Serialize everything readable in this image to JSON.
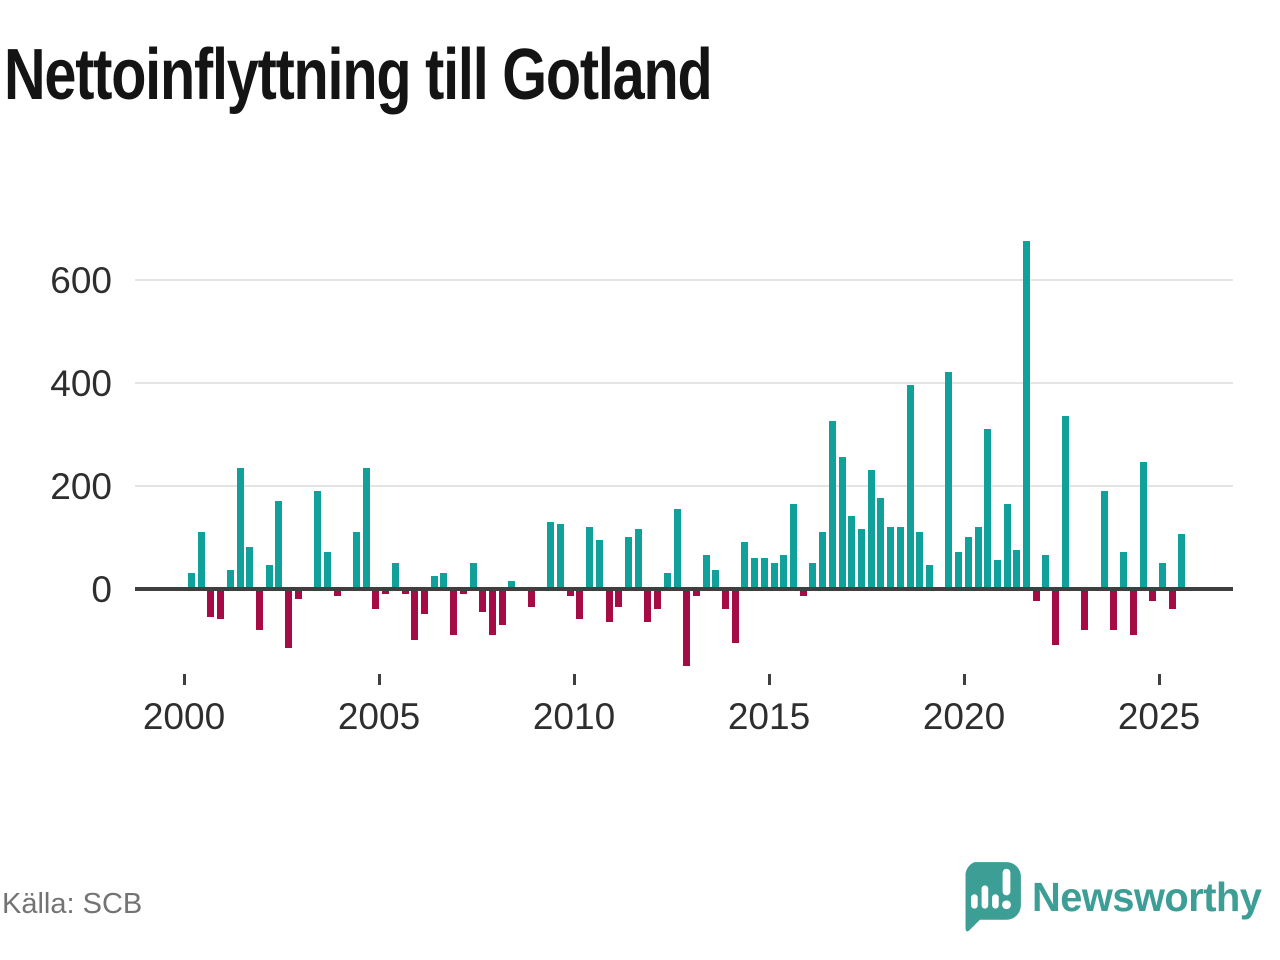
{
  "title": "Nettoinflyttning till Gotland",
  "source": "Källa: SCB",
  "brand": {
    "name": "Newsworthy",
    "logo_icon": "bar-chart-speech-bubble-icon",
    "color": "#3C9E95"
  },
  "colors": {
    "positive_bar": "#10a29a",
    "negative_bar": "#a50b45",
    "gridline": "#e4e4e4",
    "zero_line": "#3f3f3f",
    "axis_text": "#2e2e2e",
    "source_text": "#737373"
  },
  "chart_data": {
    "type": "bar",
    "title": "Nettoinflyttning till Gotland",
    "frequency": "quarterly",
    "grid": "horizontal",
    "legend": "none",
    "xlabel": "",
    "ylabel": "",
    "x_tick_labels": [
      "2000",
      "2005",
      "2010",
      "2015",
      "2020",
      "2025"
    ],
    "y_tick_labels": [
      "0",
      "200",
      "400",
      "600"
    ],
    "y_ticks": [
      0,
      200,
      400,
      600
    ],
    "ylim": [
      -160,
      700
    ],
    "quarters": [
      "2000Q1",
      "2000Q2",
      "2000Q3",
      "2000Q4",
      "2001Q1",
      "2001Q2",
      "2001Q3",
      "2001Q4",
      "2002Q1",
      "2002Q2",
      "2002Q3",
      "2002Q4",
      "2003Q1",
      "2003Q2",
      "2003Q3",
      "2003Q4",
      "2004Q1",
      "2004Q2",
      "2004Q3",
      "2004Q4",
      "2005Q1",
      "2005Q2",
      "2005Q3",
      "2005Q4",
      "2006Q1",
      "2006Q2",
      "2006Q3",
      "2006Q4",
      "2007Q1",
      "2007Q2",
      "2007Q3",
      "2007Q4",
      "2008Q1",
      "2008Q2",
      "2008Q3",
      "2008Q4",
      "2009Q1",
      "2009Q2",
      "2009Q3",
      "2009Q4",
      "2010Q1",
      "2010Q2",
      "2010Q3",
      "2010Q4",
      "2011Q1",
      "2011Q2",
      "2011Q3",
      "2011Q4",
      "2012Q1",
      "2012Q2",
      "2012Q3",
      "2012Q4",
      "2013Q1",
      "2013Q2",
      "2013Q3",
      "2013Q4",
      "2014Q1",
      "2014Q2",
      "2014Q3",
      "2014Q4",
      "2015Q1",
      "2015Q2",
      "2015Q3",
      "2015Q4",
      "2016Q1",
      "2016Q2",
      "2016Q3",
      "2016Q4",
      "2017Q1",
      "2017Q2",
      "2017Q3",
      "2017Q4",
      "2018Q1",
      "2018Q2",
      "2018Q3",
      "2018Q4",
      "2019Q1",
      "2019Q2",
      "2019Q3",
      "2019Q4",
      "2020Q1",
      "2020Q2",
      "2020Q3",
      "2020Q4",
      "2021Q1",
      "2021Q2",
      "2021Q3",
      "2021Q4",
      "2022Q1",
      "2022Q2",
      "2022Q3",
      "2022Q4",
      "2023Q1",
      "2023Q2",
      "2023Q3",
      "2023Q4",
      "2024Q1",
      "2024Q2",
      "2024Q3",
      "2024Q4",
      "2025Q1",
      "2025Q2",
      "2025Q3"
    ],
    "values": [
      30,
      110,
      -55,
      -60,
      35,
      235,
      80,
      -80,
      45,
      170,
      -115,
      -20,
      0,
      190,
      70,
      -15,
      0,
      110,
      235,
      -40,
      -10,
      50,
      -10,
      -100,
      -50,
      25,
      30,
      -90,
      -10,
      50,
      -45,
      -90,
      -70,
      15,
      0,
      -35,
      0,
      130,
      125,
      -15,
      -60,
      120,
      95,
      -65,
      -35,
      100,
      115,
      -65,
      -40,
      30,
      155,
      -150,
      -15,
      65,
      35,
      -40,
      -105,
      90,
      60,
      60,
      50,
      65,
      165,
      -15,
      50,
      110,
      325,
      255,
      140,
      115,
      230,
      175,
      120,
      120,
      395,
      110,
      45,
      0,
      420,
      70,
      100,
      120,
      310,
      55,
      165,
      75,
      675,
      -25,
      65,
      -110,
      335,
      0,
      -80,
      0,
      190,
      -80,
      70,
      -90,
      245,
      -25,
      50,
      -40,
      105
    ]
  }
}
